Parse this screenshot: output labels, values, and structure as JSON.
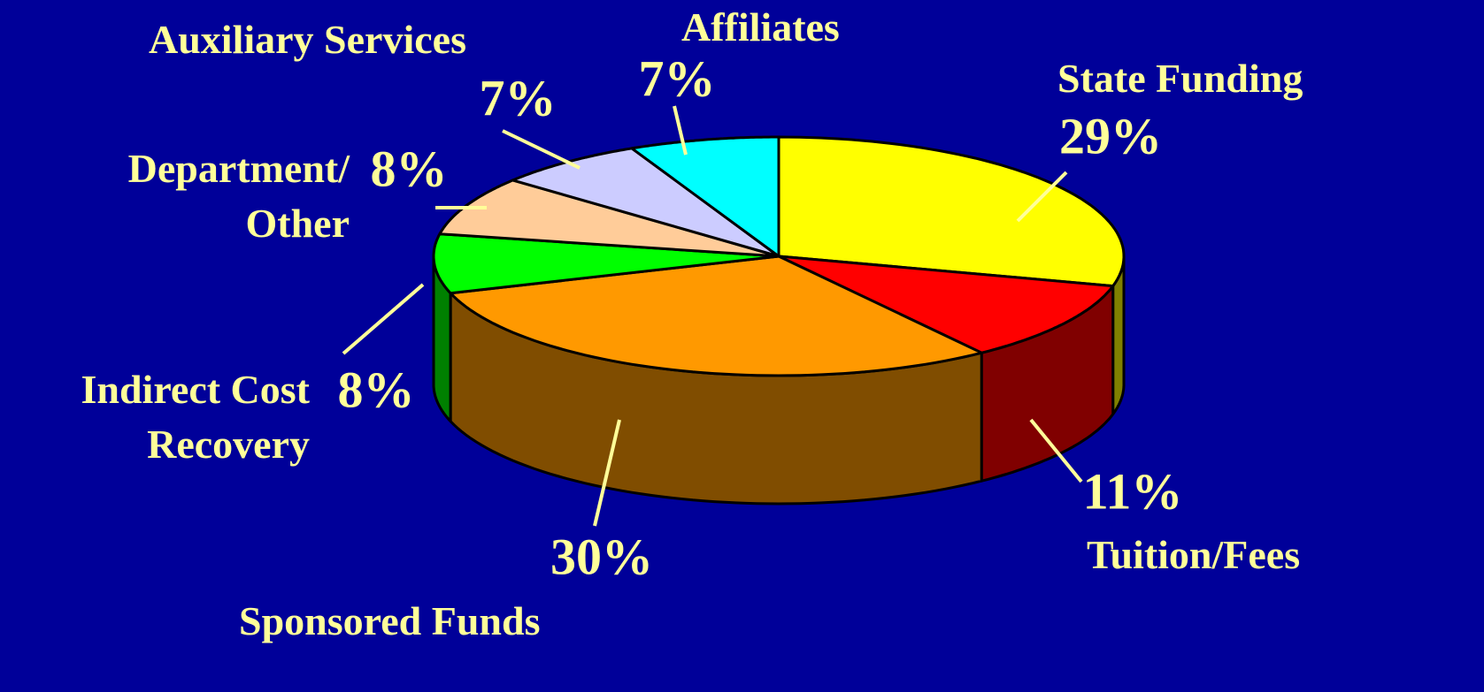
{
  "chart_data": {
    "type": "pie3d",
    "categories": [
      "State Funding",
      "Tuition/Fees",
      "Sponsored Funds",
      "Indirect Cost Recovery",
      "Department/ Other",
      "Auxiliary Services",
      "Affiliates"
    ],
    "values": [
      29,
      11,
      30,
      8,
      8,
      7,
      7
    ],
    "value_labels": [
      "29%",
      "11%",
      "30%",
      "8%",
      "8%",
      "7%",
      "7%"
    ],
    "colors": [
      "#ffff00",
      "#ff0000",
      "#ff9900",
      "#00ff00",
      "#ffcc99",
      "#ccccff",
      "#00ffff"
    ]
  }
}
